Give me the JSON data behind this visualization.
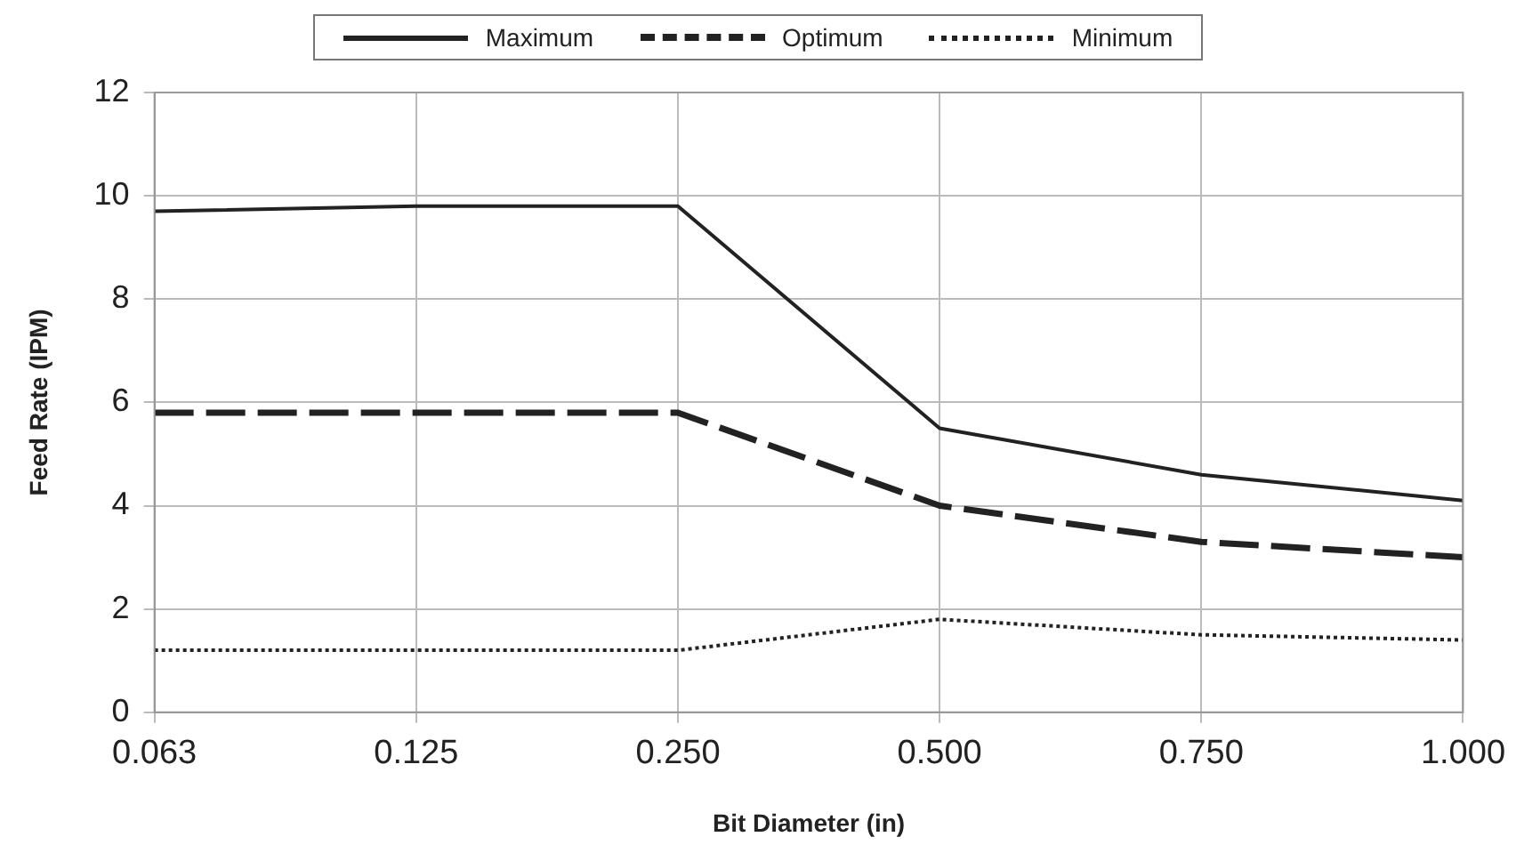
{
  "chart_data": {
    "type": "line",
    "xlabel": "Bit Diameter (in)",
    "ylabel": "Feed Rate (IPM)",
    "categories": [
      "0.063",
      "0.125",
      "0.250",
      "0.500",
      "0.750",
      "1.000"
    ],
    "series": [
      {
        "name": "Maximum",
        "color": "#222222",
        "line_style": "solid",
        "values": [
          9.7,
          9.8,
          9.8,
          5.5,
          4.6,
          4.1
        ]
      },
      {
        "name": "Optimum",
        "color": "#222222",
        "line_style": "dashed",
        "values": [
          5.8,
          5.8,
          5.8,
          4.0,
          3.3,
          3.0
        ]
      },
      {
        "name": "Minimum",
        "color": "#222222",
        "line_style": "dotted",
        "values": [
          1.2,
          1.2,
          1.2,
          1.8,
          1.5,
          1.4
        ]
      }
    ],
    "ylim": [
      0,
      12
    ],
    "yticks": [
      0,
      2,
      4,
      6,
      8,
      10,
      12
    ],
    "grid": true,
    "legend": "top",
    "marker": "none"
  }
}
